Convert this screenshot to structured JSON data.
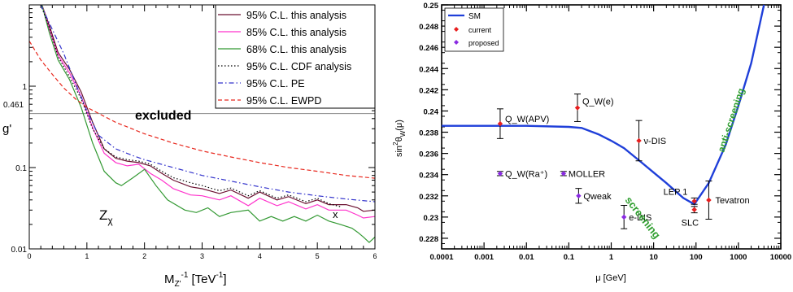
{
  "left_panel": {
    "ylabel": "g'",
    "xlabel_main": "M",
    "xlabel_sub": "Z'",
    "xlabel_sup": "-1",
    "xlabel_unit": "[TeV",
    "xlabel_unit_sup": "-1",
    "xlabel_close": "]",
    "extra_ytick": "0.461",
    "annotation_excluded": "excluded",
    "annotation_model": "Z",
    "annotation_model_sub": "χ",
    "annotation_x": "x"
  },
  "right_panel": {
    "ylabel_main": "sin",
    "ylabel_sup": "2",
    "ylabel_theta": "θ",
    "ylabel_sub": "W",
    "ylabel_arg": "(μ)",
    "xlabel": "μ [GeV]",
    "label_screening": "screening",
    "label_antiscreening": "anti-screening"
  },
  "colors": {
    "cl95_this": "#6b1030",
    "cl85_this": "#ff33cc",
    "cl68_this": "#339933",
    "cdf": "#000000",
    "pe": "#3333cc",
    "ewpd": "#e8281e",
    "sm_line": "#1f3fd9",
    "current": "#e81e1e",
    "proposed": "#8a2be2",
    "screen_text": "#2e9e2e"
  },
  "chart_data": [
    {
      "type": "line",
      "xlim": [
        0,
        6
      ],
      "ylim": [
        0.01,
        10
      ],
      "yscale": "log",
      "xticks": [
        "0",
        "1",
        "2",
        "3",
        "4",
        "5",
        "6"
      ],
      "yticks": [
        "0.01",
        "0.1",
        "1"
      ],
      "xlabel": "M_Z'^-1 [TeV^-1]",
      "ylabel": "g'",
      "hline": 0.461,
      "legend_position": "top-right",
      "series": [
        {
          "name": "95% C.L. this analysis",
          "style": "solid",
          "x": [
            0.22,
            0.35,
            0.5,
            0.7,
            0.9,
            1.1,
            1.3,
            1.5,
            1.7,
            1.9,
            2.1,
            2.3,
            2.5,
            2.8,
            3.0,
            3.3,
            3.5,
            3.8,
            4.0,
            4.3,
            4.5,
            4.8,
            5.0,
            5.2,
            5.5,
            5.7,
            5.8,
            6.0
          ],
          "y": [
            10,
            5.5,
            2.6,
            1.6,
            0.85,
            0.36,
            0.17,
            0.13,
            0.12,
            0.115,
            0.105,
            0.085,
            0.07,
            0.058,
            0.055,
            0.048,
            0.053,
            0.042,
            0.05,
            0.04,
            0.044,
            0.036,
            0.04,
            0.035,
            0.035,
            0.032,
            0.029,
            0.03
          ]
        },
        {
          "name": "85% C.L. this analysis",
          "style": "solid",
          "x": [
            0.22,
            0.35,
            0.5,
            0.7,
            0.9,
            1.1,
            1.3,
            1.5,
            1.7,
            1.9,
            2.1,
            2.3,
            2.5,
            2.8,
            3.0,
            3.3,
            3.5,
            3.8,
            4.0,
            4.3,
            4.5,
            4.8,
            5.0,
            5.2,
            5.5,
            5.7,
            5.8,
            6.0
          ],
          "y": [
            10,
            5.0,
            2.4,
            1.45,
            0.75,
            0.31,
            0.15,
            0.115,
            0.105,
            0.11,
            0.085,
            0.07,
            0.055,
            0.046,
            0.045,
            0.04,
            0.045,
            0.034,
            0.042,
            0.034,
            0.038,
            0.031,
            0.035,
            0.03,
            0.03,
            0.026,
            0.024,
            0.025
          ]
        },
        {
          "name": "68% C.L. this analysis",
          "style": "solid",
          "x": [
            0.22,
            0.35,
            0.5,
            0.7,
            0.9,
            1.1,
            1.3,
            1.5,
            1.6,
            1.8,
            2.0,
            2.2,
            2.4,
            2.7,
            2.9,
            3.1,
            3.3,
            3.5,
            3.8,
            4.0,
            4.2,
            4.4,
            4.6,
            4.8,
            5.0,
            5.2,
            5.4,
            5.6,
            5.7,
            5.8,
            5.9,
            6.0
          ],
          "y": [
            10,
            4.5,
            2.1,
            1.2,
            0.55,
            0.2,
            0.09,
            0.065,
            0.06,
            0.075,
            0.095,
            0.06,
            0.04,
            0.03,
            0.028,
            0.032,
            0.025,
            0.028,
            0.03,
            0.022,
            0.025,
            0.022,
            0.025,
            0.022,
            0.026,
            0.022,
            0.02,
            0.018,
            0.016,
            0.014,
            0.012,
            0.014
          ]
        },
        {
          "name": "95% C.L. CDF analysis",
          "style": "dotted",
          "x": [
            0.2,
            0.35,
            0.5,
            0.7,
            0.9,
            1.1,
            1.3,
            1.5,
            1.7,
            1.9,
            2.1,
            2.3,
            2.5,
            2.8,
            3.0,
            3.3,
            3.5,
            3.8,
            4.0,
            4.3,
            4.5,
            4.8,
            5.0,
            5.2,
            5.4
          ],
          "y": [
            10,
            5.2,
            2.3,
            1.3,
            0.7,
            0.3,
            0.17,
            0.135,
            0.125,
            0.12,
            0.11,
            0.09,
            0.075,
            0.065,
            0.06,
            0.052,
            0.056,
            0.045,
            0.052,
            0.042,
            0.046,
            0.038,
            0.042,
            0.036,
            0.033
          ]
        },
        {
          "name": "95% C.L. PE",
          "style": "dashdot",
          "x": [
            0.2,
            0.4,
            0.6,
            0.8,
            1.0,
            1.2,
            1.5,
            1.8,
            2.0,
            2.5,
            3.0,
            3.5,
            4.0,
            4.5,
            5.0,
            5.5,
            6.0
          ],
          "y": [
            10,
            5.0,
            2.5,
            1.1,
            0.5,
            0.25,
            0.17,
            0.14,
            0.125,
            0.1,
            0.08,
            0.068,
            0.058,
            0.05,
            0.045,
            0.041,
            0.038
          ]
        },
        {
          "name": "95% C.L. EWPD",
          "style": "dashed",
          "x": [
            0.0,
            0.2,
            0.4,
            0.6,
            0.8,
            1.0,
            1.5,
            2.0,
            2.5,
            3.0,
            3.5,
            4.0,
            4.5,
            5.0,
            5.5,
            6.0
          ],
          "y": [
            3.6,
            2.1,
            1.4,
            0.95,
            0.7,
            0.55,
            0.36,
            0.26,
            0.2,
            0.16,
            0.135,
            0.115,
            0.1,
            0.09,
            0.08,
            0.074
          ]
        }
      ]
    },
    {
      "type": "scatter",
      "xscale": "log",
      "xlim": [
        0.0001,
        10000
      ],
      "ylim": [
        0.227,
        0.25
      ],
      "xticks": [
        "0.0001",
        "0.001",
        "0.01",
        "0.1",
        "1",
        "10",
        "100",
        "1000",
        "10000"
      ],
      "yticks": [
        "0.228",
        "0.23",
        "0.232",
        "0.234",
        "0.236",
        "0.238",
        "0.24",
        "0.242",
        "0.244",
        "0.246",
        "0.248",
        "0.25"
      ],
      "xlabel": "μ [GeV]",
      "ylabel": "sin²θ_W(μ)",
      "legend_position": "top-left",
      "series": [
        {
          "name": "SM",
          "kind": "line",
          "x": [
            0.0001,
            0.001,
            0.01,
            0.1,
            0.2,
            0.5,
            1,
            2,
            5,
            10,
            20,
            50,
            91.2,
            200,
            500,
            1000,
            2000,
            4000
          ],
          "y": [
            0.2386,
            0.2386,
            0.2386,
            0.2385,
            0.2384,
            0.2378,
            0.2372,
            0.2365,
            0.2352,
            0.2342,
            0.2332,
            0.2318,
            0.2312,
            0.2332,
            0.2368,
            0.2405,
            0.2445,
            0.25
          ]
        },
        {
          "name": "current",
          "kind": "points",
          "points": [
            {
              "label": "Q_W(APV)",
              "x": 0.0024,
              "y": 0.2388,
              "err": 0.0014
            },
            {
              "label": "Q_W(e)",
              "x": 0.16,
              "y": 0.2403,
              "err": 0.0013
            },
            {
              "label": "ν-DIS",
              "x": 4.5,
              "y": 0.2372,
              "err": 0.0019
            },
            {
              "label": "LEP 1",
              "x": 91.2,
              "y": 0.2315,
              "err": 0.0003
            },
            {
              "label": "SLC",
              "x": 91.2,
              "y": 0.2307,
              "err": 0.0003
            },
            {
              "label": "Tevatron",
              "x": 200,
              "y": 0.2316,
              "err": 0.0018
            }
          ]
        },
        {
          "name": "proposed",
          "kind": "points",
          "points": [
            {
              "label": "Q_W(Ra⁺)",
              "x": 0.0024,
              "y": 0.2341,
              "err": 0.0002
            },
            {
              "label": "MOLLER",
              "x": 0.075,
              "y": 0.2341,
              "err": 0.0002
            },
            {
              "label": "Qweak",
              "x": 0.17,
              "y": 0.232,
              "err": 0.0007
            },
            {
              "label": "e-DIS",
              "x": 2,
              "y": 0.23,
              "err": 0.0011
            }
          ]
        }
      ]
    }
  ]
}
